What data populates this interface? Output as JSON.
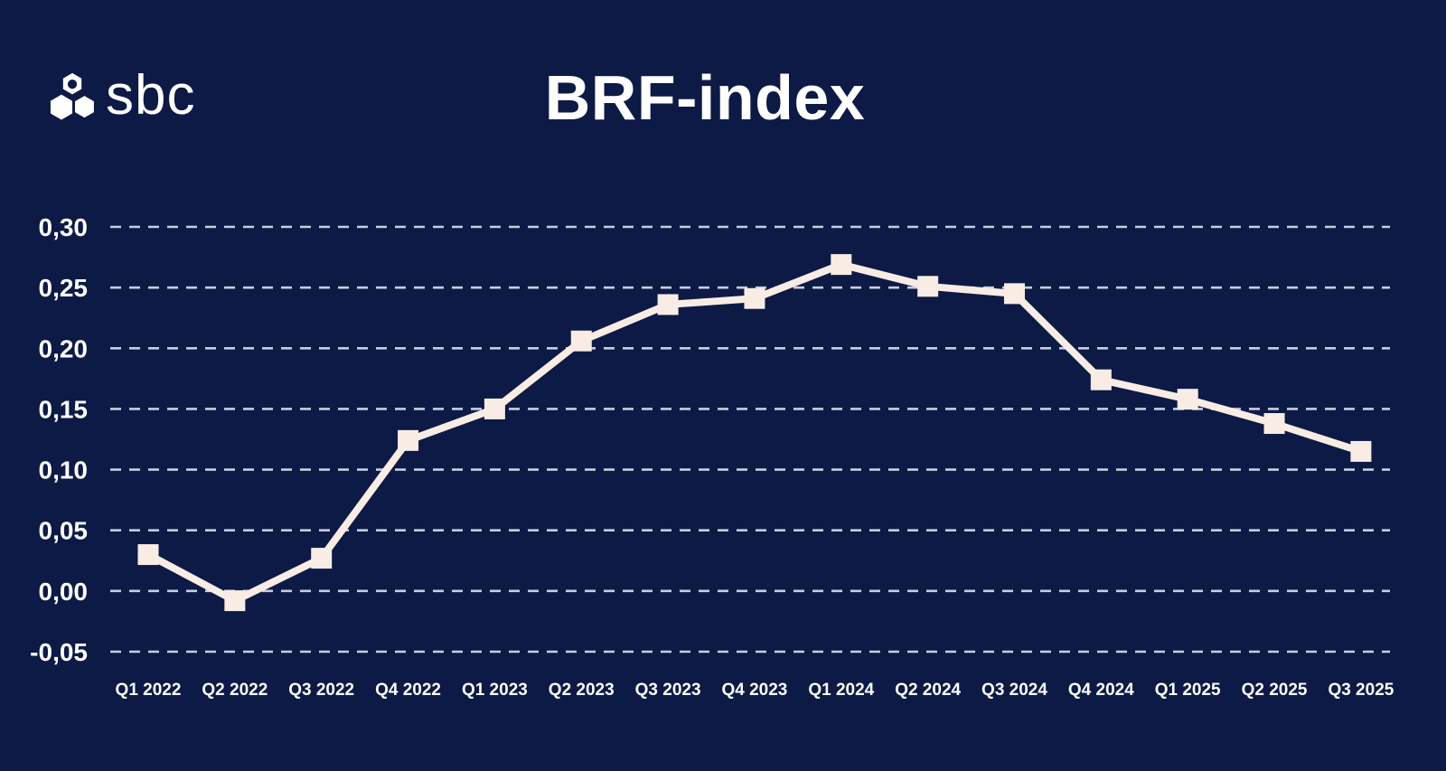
{
  "brand": {
    "name": "sbc"
  },
  "header": {
    "title": "BRF-index"
  },
  "colors": {
    "background": "#0c1a45",
    "line": "#f8ece4",
    "marker": "#f8ece4",
    "grid": "#c7cddf",
    "text": "#ffffff"
  },
  "chart_data": {
    "type": "line",
    "title": "BRF-index",
    "xlabel": "",
    "ylabel": "",
    "legend": "none",
    "grid": "horizontal-dashed",
    "marker": "square",
    "ylim": [
      -0.05,
      0.3
    ],
    "x": [
      "Q1 2022",
      "Q2 2022",
      "Q3 2022",
      "Q4 2022",
      "Q1 2023",
      "Q2 2023",
      "Q3 2023",
      "Q4 2023",
      "Q1 2024",
      "Q2 2024",
      "Q3 2024",
      "Q4 2024",
      "Q1 2025",
      "Q2 2025",
      "Q3 2025"
    ],
    "series": [
      {
        "name": "BRF-index",
        "values": [
          0.03,
          -0.008,
          0.027,
          0.124,
          0.15,
          0.206,
          0.236,
          0.241,
          0.269,
          0.251,
          0.245,
          0.174,
          0.158,
          0.138,
          0.115
        ]
      }
    ],
    "yticks": [
      {
        "value": 0.3,
        "label": "0,30"
      },
      {
        "value": 0.25,
        "label": "0,25"
      },
      {
        "value": 0.2,
        "label": "0,20"
      },
      {
        "value": 0.15,
        "label": "0,15"
      },
      {
        "value": 0.1,
        "label": "0,10"
      },
      {
        "value": 0.05,
        "label": "0,05"
      },
      {
        "value": 0.0,
        "label": "0,00"
      },
      {
        "value": -0.05,
        "label": "-0,05"
      }
    ]
  }
}
